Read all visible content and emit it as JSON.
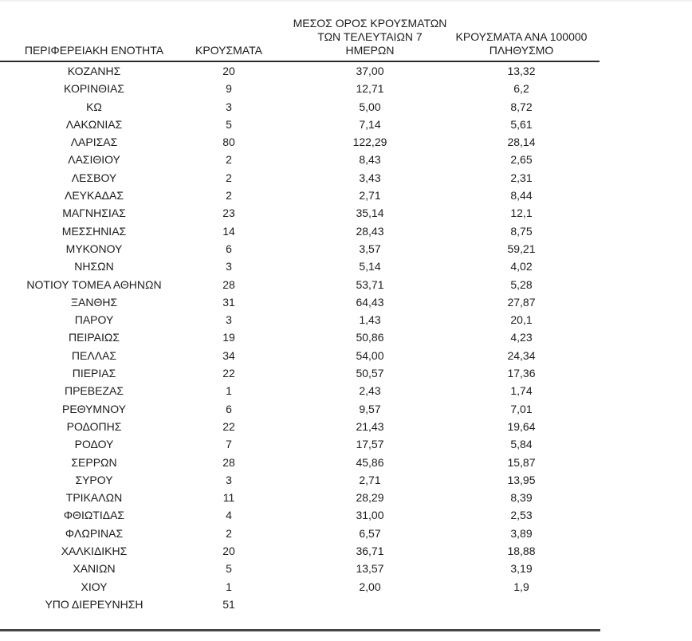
{
  "page": {
    "cropped_left_text": "0"
  },
  "table": {
    "columns": [
      {
        "label": "ΠΕΡΙΦΕΡΕΙΑΚΗ ΕΝΟΤΗΤΑ"
      },
      {
        "label": "ΚΡΟΥΣΜΑΤΑ"
      },
      {
        "label": "ΜΕΣΟΣ ΟΡΟΣ ΚΡΟΥΣΜΑΤΩΝ\nΤΩΝ ΤΕΛΕΥΤΑΙΩΝ 7\nΗΜΕΡΩΝ"
      },
      {
        "label": "ΚΡΟΥΣΜΑΤΑ ΑΝΑ 100000\nΠΛΗΘΥΣΜΟ"
      }
    ],
    "rows": [
      {
        "region": "ΚΟΖΑΝΗΣ",
        "cases": "20",
        "avg_7day": "37,00",
        "per_100k": "13,32"
      },
      {
        "region": "ΚΟΡΙΝΘΙΑΣ",
        "cases": "9",
        "avg_7day": "12,71",
        "per_100k": "6,2"
      },
      {
        "region": "ΚΩ",
        "cases": "3",
        "avg_7day": "5,00",
        "per_100k": "8,72"
      },
      {
        "region": "ΛΑΚΩΝΙΑΣ",
        "cases": "5",
        "avg_7day": "7,14",
        "per_100k": "5,61"
      },
      {
        "region": "ΛΑΡΙΣΑΣ",
        "cases": "80",
        "avg_7day": "122,29",
        "per_100k": "28,14"
      },
      {
        "region": "ΛΑΣΙΘΙΟΥ",
        "cases": "2",
        "avg_7day": "8,43",
        "per_100k": "2,65"
      },
      {
        "region": "ΛΕΣΒΟΥ",
        "cases": "2",
        "avg_7day": "3,43",
        "per_100k": "2,31"
      },
      {
        "region": "ΛΕΥΚΑΔΑΣ",
        "cases": "2",
        "avg_7day": "2,71",
        "per_100k": "8,44"
      },
      {
        "region": "ΜΑΓΝΗΣΙΑΣ",
        "cases": "23",
        "avg_7day": "35,14",
        "per_100k": "12,1"
      },
      {
        "region": "ΜΕΣΣΗΝΙΑΣ",
        "cases": "14",
        "avg_7day": "28,43",
        "per_100k": "8,75"
      },
      {
        "region": "ΜΥΚΟΝΟΥ",
        "cases": "6",
        "avg_7day": "3,57",
        "per_100k": "59,21"
      },
      {
        "region": "ΝΗΣΩΝ",
        "cases": "3",
        "avg_7day": "5,14",
        "per_100k": "4,02"
      },
      {
        "region": "ΝΟΤΙΟΥ ΤΟΜΕΑ ΑΘΗΝΩΝ",
        "cases": "28",
        "avg_7day": "53,71",
        "per_100k": "5,28"
      },
      {
        "region": "ΞΑΝΘΗΣ",
        "cases": "31",
        "avg_7day": "64,43",
        "per_100k": "27,87"
      },
      {
        "region": "ΠΑΡΟΥ",
        "cases": "3",
        "avg_7day": "1,43",
        "per_100k": "20,1"
      },
      {
        "region": "ΠΕΙΡΑΙΩΣ",
        "cases": "19",
        "avg_7day": "50,86",
        "per_100k": "4,23"
      },
      {
        "region": "ΠΕΛΛΑΣ",
        "cases": "34",
        "avg_7day": "54,00",
        "per_100k": "24,34"
      },
      {
        "region": "ΠΙΕΡΙΑΣ",
        "cases": "22",
        "avg_7day": "50,57",
        "per_100k": "17,36"
      },
      {
        "region": "ΠΡΕΒΕΖΑΣ",
        "cases": "1",
        "avg_7day": "2,43",
        "per_100k": "1,74"
      },
      {
        "region": "ΡΕΘΥΜΝΟΥ",
        "cases": "6",
        "avg_7day": "9,57",
        "per_100k": "7,01"
      },
      {
        "region": "ΡΟΔΟΠΗΣ",
        "cases": "22",
        "avg_7day": "21,43",
        "per_100k": "19,64"
      },
      {
        "region": "ΡΟΔΟΥ",
        "cases": "7",
        "avg_7day": "17,57",
        "per_100k": "5,84"
      },
      {
        "region": "ΣΕΡΡΩΝ",
        "cases": "28",
        "avg_7day": "45,86",
        "per_100k": "15,87"
      },
      {
        "region": "ΣΥΡΟΥ",
        "cases": "3",
        "avg_7day": "2,71",
        "per_100k": "13,95"
      },
      {
        "region": "ΤΡΙΚΑΛΩΝ",
        "cases": "11",
        "avg_7day": "28,29",
        "per_100k": "8,39"
      },
      {
        "region": "ΦΘΙΩΤΙΔΑΣ",
        "cases": "4",
        "avg_7day": "31,00",
        "per_100k": "2,53"
      },
      {
        "region": "ΦΛΩΡΙΝΑΣ",
        "cases": "2",
        "avg_7day": "6,57",
        "per_100k": "3,89"
      },
      {
        "region": "ΧΑΛΚΙΔΙΚΗΣ",
        "cases": "20",
        "avg_7day": "36,71",
        "per_100k": "18,88"
      },
      {
        "region": "ΧΑΝΙΩΝ",
        "cases": "5",
        "avg_7day": "13,57",
        "per_100k": "3,19"
      },
      {
        "region": "ΧΙΟΥ",
        "cases": "1",
        "avg_7day": "2,00",
        "per_100k": "1,9"
      },
      {
        "region": "ΥΠΟ ΔΙΕΡΕΥΝΗΣΗ",
        "cases": "51",
        "avg_7day": "",
        "per_100k": ""
      }
    ]
  }
}
